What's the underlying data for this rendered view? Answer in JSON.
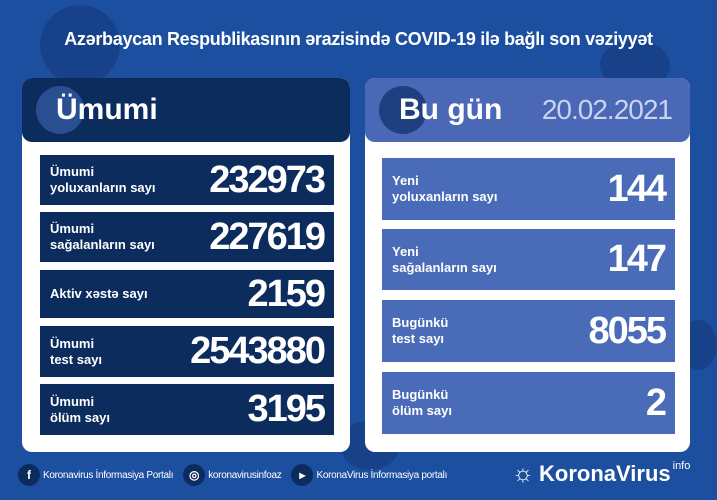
{
  "title": "Azərbaycan Respublikasının ərazisində COVID-19 ilə bağlı son vəziyyət",
  "colors": {
    "background": "#1d4fa0",
    "navy": "#0d2c5e",
    "today_blue": "#4a6cb8"
  },
  "total": {
    "heading": "Ümumi",
    "rows": [
      {
        "line1": "Ümumi",
        "line2": "yoluxanların sayı",
        "value": "232973"
      },
      {
        "line1": "Ümumi",
        "line2": "sağalanların sayı",
        "value": "227619"
      },
      {
        "line1": "Aktiv xəstə sayı",
        "line2": "",
        "value": "2159"
      },
      {
        "line1": "Ümumi",
        "line2": "test sayı",
        "value": "2543880"
      },
      {
        "line1": "Ümumi",
        "line2": "ölüm sayı",
        "value": "3195"
      }
    ]
  },
  "today": {
    "heading": "Bu gün",
    "date": "20.02.2021",
    "rows": [
      {
        "line1": "Yeni",
        "line2": "yoluxanların sayı",
        "value": "144"
      },
      {
        "line1": "Yeni",
        "line2": "sağalanların sayı",
        "value": "147"
      },
      {
        "line1": "Bugünkü",
        "line2": "test sayı",
        "value": "8055"
      },
      {
        "line1": "Bugünkü",
        "line2": "ölüm sayı",
        "value": "2"
      }
    ]
  },
  "footer": {
    "facebook": "Koronavirus İnformasiya Portalı",
    "instagram": "koronavirusinfoaz",
    "youtube": "KoronaVirus İnformasiya portalı",
    "brand": "KoronaVirus",
    "brand_sup": "info"
  }
}
